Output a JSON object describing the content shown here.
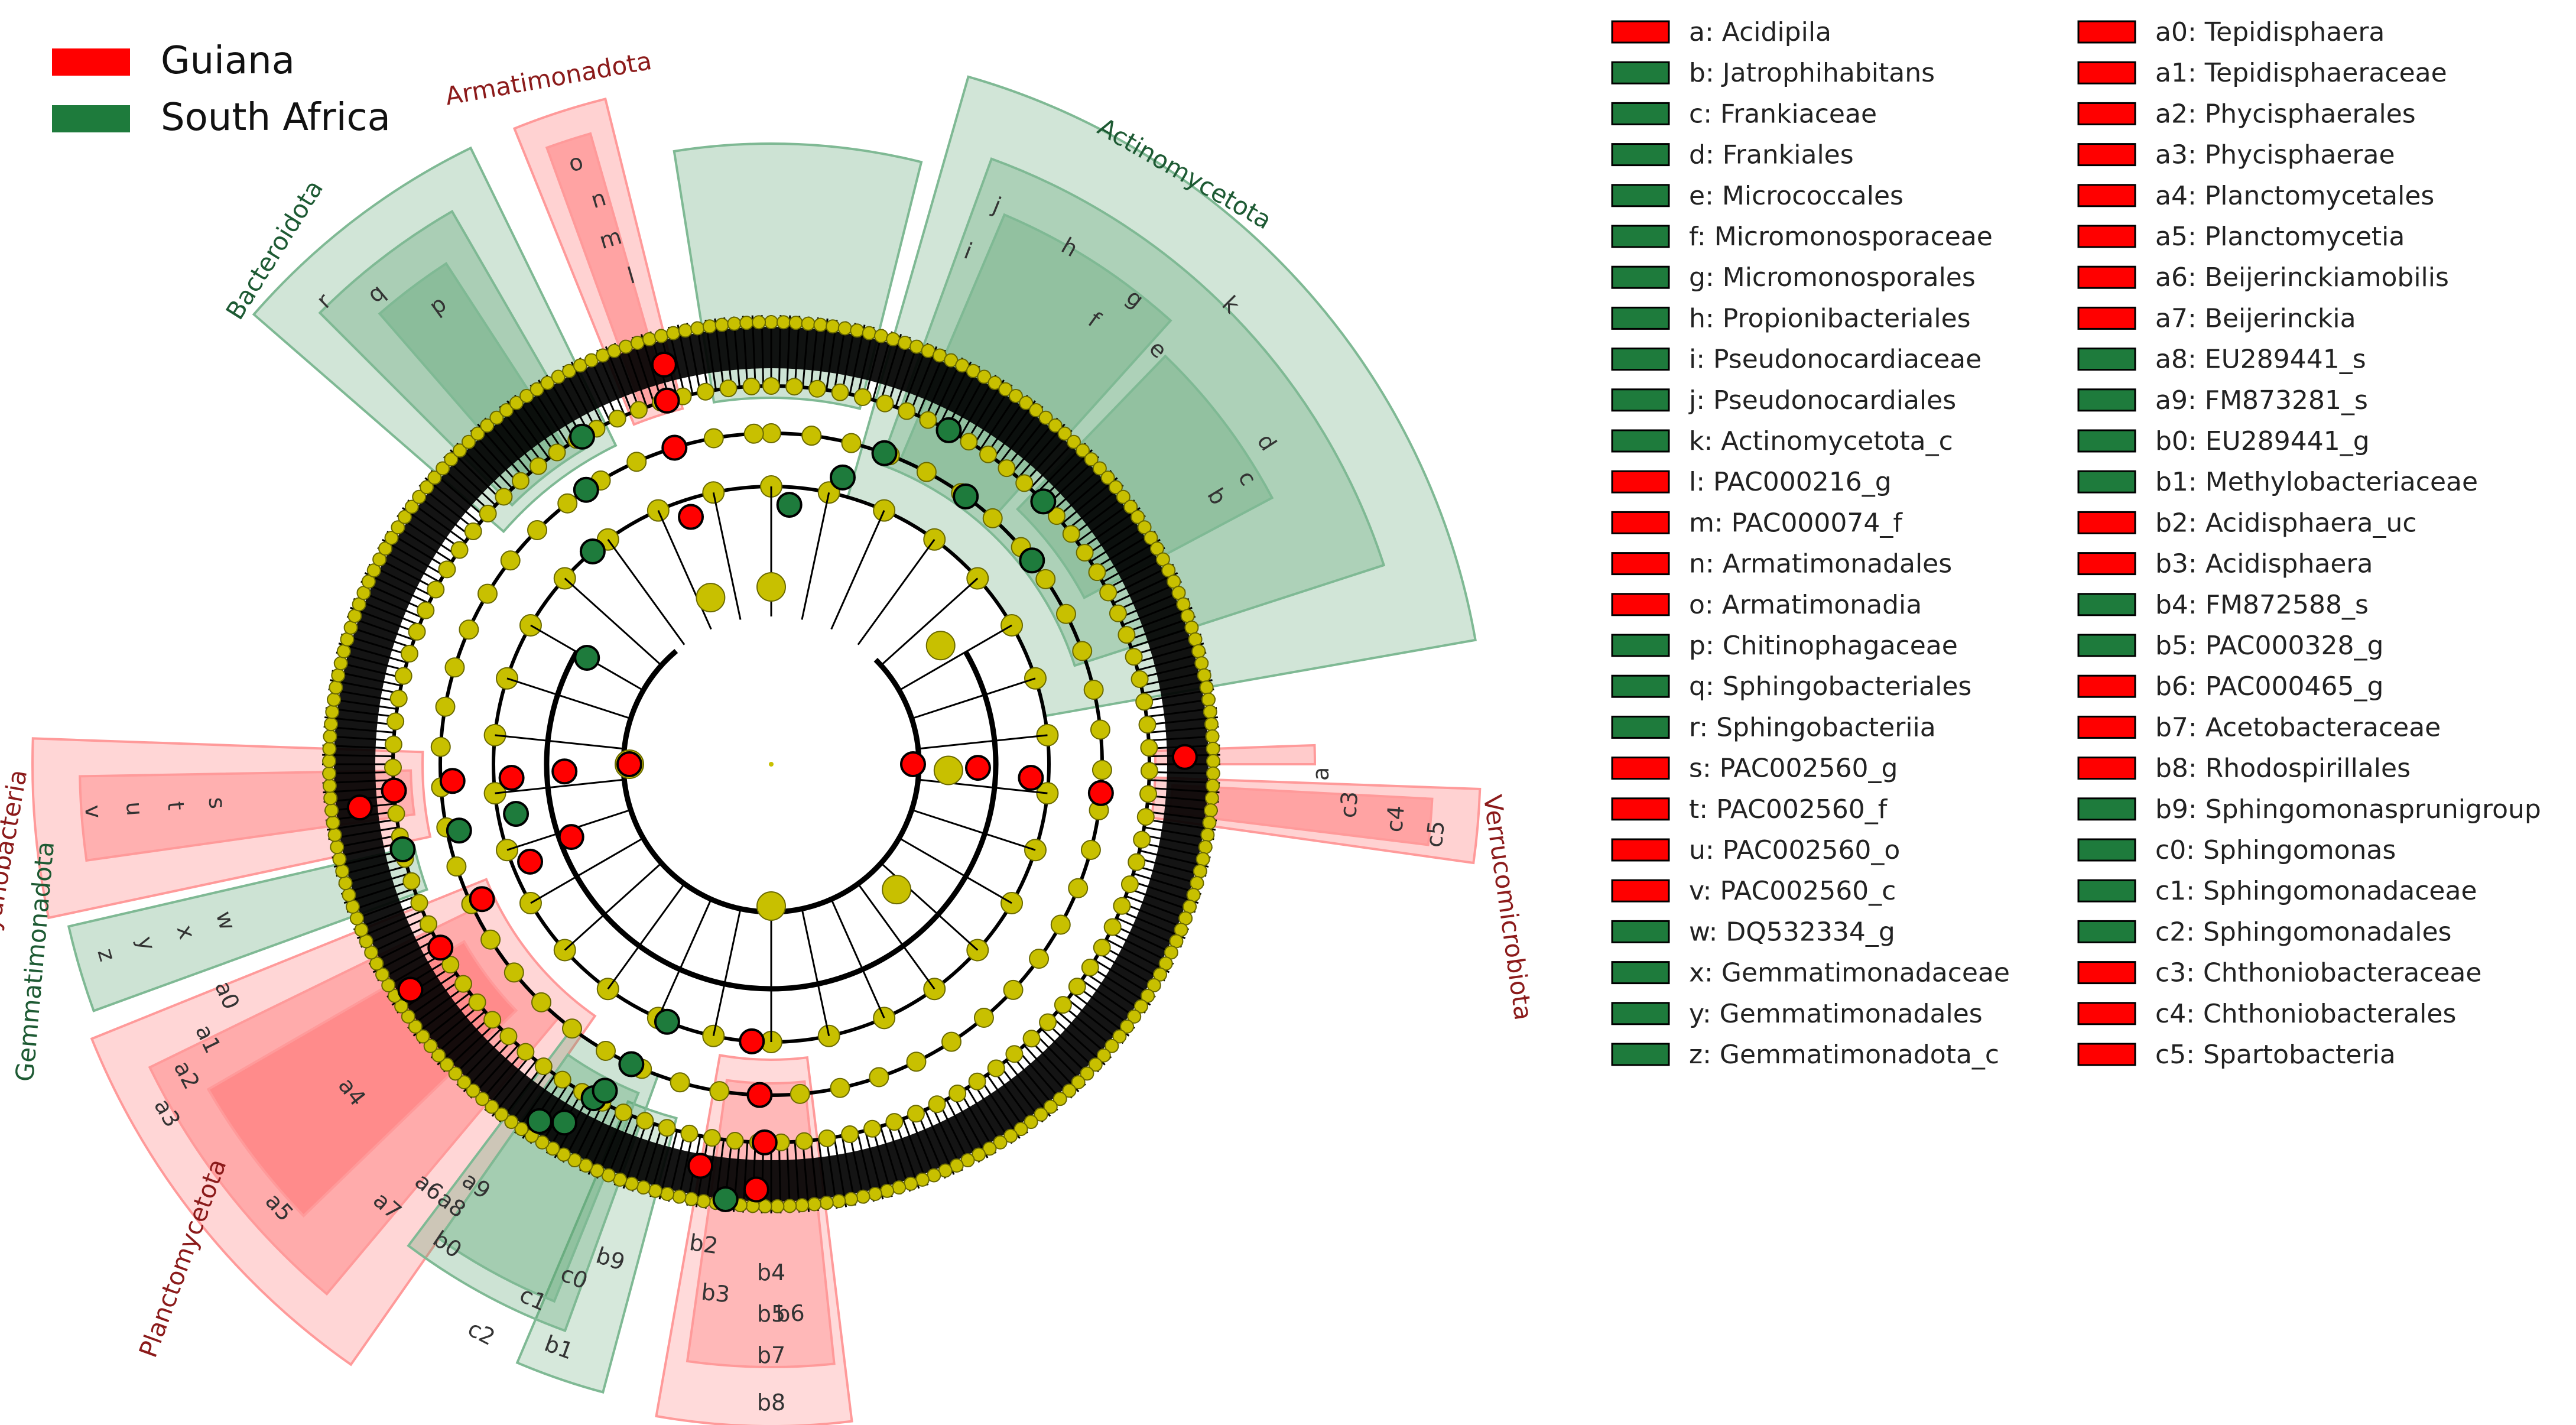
{
  "group_legend": [
    {
      "name": "Guiana",
      "color": "#ff0000"
    },
    {
      "name": "South Africa",
      "color": "#1e7b3c"
    }
  ],
  "taxa_legend": [
    {
      "key": "a",
      "name": "Acidipila",
      "group": "Guiana"
    },
    {
      "key": "b",
      "name": "Jatrophihabitans",
      "group": "South Africa"
    },
    {
      "key": "c",
      "name": "Frankiaceae",
      "group": "South Africa"
    },
    {
      "key": "d",
      "name": "Frankiales",
      "group": "South Africa"
    },
    {
      "key": "e",
      "name": "Micrococcales",
      "group": "South Africa"
    },
    {
      "key": "f",
      "name": "Micromonosporaceae",
      "group": "South Africa"
    },
    {
      "key": "g",
      "name": "Micromonosporales",
      "group": "South Africa"
    },
    {
      "key": "h",
      "name": "Propionibacteriales",
      "group": "South Africa"
    },
    {
      "key": "i",
      "name": "Pseudonocardiaceae",
      "group": "South Africa"
    },
    {
      "key": "j",
      "name": "Pseudonocardiales",
      "group": "South Africa"
    },
    {
      "key": "k",
      "name": "Actinomycetota_c",
      "group": "South Africa"
    },
    {
      "key": "l",
      "name": "PAC000216_g",
      "group": "Guiana"
    },
    {
      "key": "m",
      "name": "PAC000074_f",
      "group": "Guiana"
    },
    {
      "key": "n",
      "name": "Armatimonadales",
      "group": "Guiana"
    },
    {
      "key": "o",
      "name": "Armatimonadia",
      "group": "Guiana"
    },
    {
      "key": "p",
      "name": "Chitinophagaceae",
      "group": "South Africa"
    },
    {
      "key": "q",
      "name": "Sphingobacteriales",
      "group": "South Africa"
    },
    {
      "key": "r",
      "name": "Sphingobacteriia",
      "group": "South Africa"
    },
    {
      "key": "s",
      "name": "PAC002560_g",
      "group": "Guiana"
    },
    {
      "key": "t",
      "name": "PAC002560_f",
      "group": "Guiana"
    },
    {
      "key": "u",
      "name": "PAC002560_o",
      "group": "Guiana"
    },
    {
      "key": "v",
      "name": "PAC002560_c",
      "group": "Guiana"
    },
    {
      "key": "w",
      "name": "DQ532334_g",
      "group": "South Africa"
    },
    {
      "key": "x",
      "name": "Gemmatimonadaceae",
      "group": "South Africa"
    },
    {
      "key": "y",
      "name": "Gemmatimonadales",
      "group": "South Africa"
    },
    {
      "key": "z",
      "name": "Gemmatimonadota_c",
      "group": "South Africa"
    },
    {
      "key": "a0",
      "name": "Tepidisphaera",
      "group": "Guiana"
    },
    {
      "key": "a1",
      "name": "Tepidisphaeraceae",
      "group": "Guiana"
    },
    {
      "key": "a2",
      "name": "Phycisphaerales",
      "group": "Guiana"
    },
    {
      "key": "a3",
      "name": "Phycisphaerae",
      "group": "Guiana"
    },
    {
      "key": "a4",
      "name": "Planctomycetales",
      "group": "Guiana"
    },
    {
      "key": "a5",
      "name": "Planctomycetia",
      "group": "Guiana"
    },
    {
      "key": "a6",
      "name": "Beijerinckiamobilis",
      "group": "Guiana"
    },
    {
      "key": "a7",
      "name": "Beijerinckia",
      "group": "Guiana"
    },
    {
      "key": "a8",
      "name": "EU289441_s",
      "group": "South Africa"
    },
    {
      "key": "a9",
      "name": "FM873281_s",
      "group": "South Africa"
    },
    {
      "key": "b0",
      "name": "EU289441_g",
      "group": "South Africa"
    },
    {
      "key": "b1",
      "name": "Methylobacteriaceae",
      "group": "South Africa"
    },
    {
      "key": "b2",
      "name": "Acidisphaera_uc",
      "group": "Guiana"
    },
    {
      "key": "b3",
      "name": "Acidisphaera",
      "group": "Guiana"
    },
    {
      "key": "b4",
      "name": "FM872588_s",
      "group": "South Africa"
    },
    {
      "key": "b5",
      "name": "PAC000328_g",
      "group": "South Africa"
    },
    {
      "key": "b6",
      "name": "PAC000465_g",
      "group": "Guiana"
    },
    {
      "key": "b7",
      "name": "Acetobacteraceae",
      "group": "Guiana"
    },
    {
      "key": "b8",
      "name": "Rhodospirillales",
      "group": "Guiana"
    },
    {
      "key": "b9",
      "name": "Sphingomonasprunigroup",
      "group": "South Africa"
    },
    {
      "key": "c0",
      "name": "Sphingomonas",
      "group": "South Africa"
    },
    {
      "key": "c1",
      "name": "Sphingomonadaceae",
      "group": "South Africa"
    },
    {
      "key": "c2",
      "name": "Sphingomonadales",
      "group": "South Africa"
    },
    {
      "key": "c3",
      "name": "Chthoniobacteraceae",
      "group": "Guiana"
    },
    {
      "key": "c4",
      "name": "Chthoniobacterales",
      "group": "Guiana"
    },
    {
      "key": "c5",
      "name": "Spartobacteria",
      "group": "Guiana"
    }
  ],
  "phyla": [
    {
      "name": "Armatimonadota",
      "group": "Guiana"
    },
    {
      "name": "Actinomycetota",
      "group": "South Africa"
    },
    {
      "name": "Bacteroidota",
      "group": "South Africa"
    },
    {
      "name": "Cyanobacteria",
      "group": "Guiana"
    },
    {
      "name": "Gemmatimonadota",
      "group": "South Africa"
    },
    {
      "name": "Planctomycetota",
      "group": "Guiana"
    },
    {
      "name": "Verrucomicrobiota",
      "group": "Guiana"
    }
  ]
}
